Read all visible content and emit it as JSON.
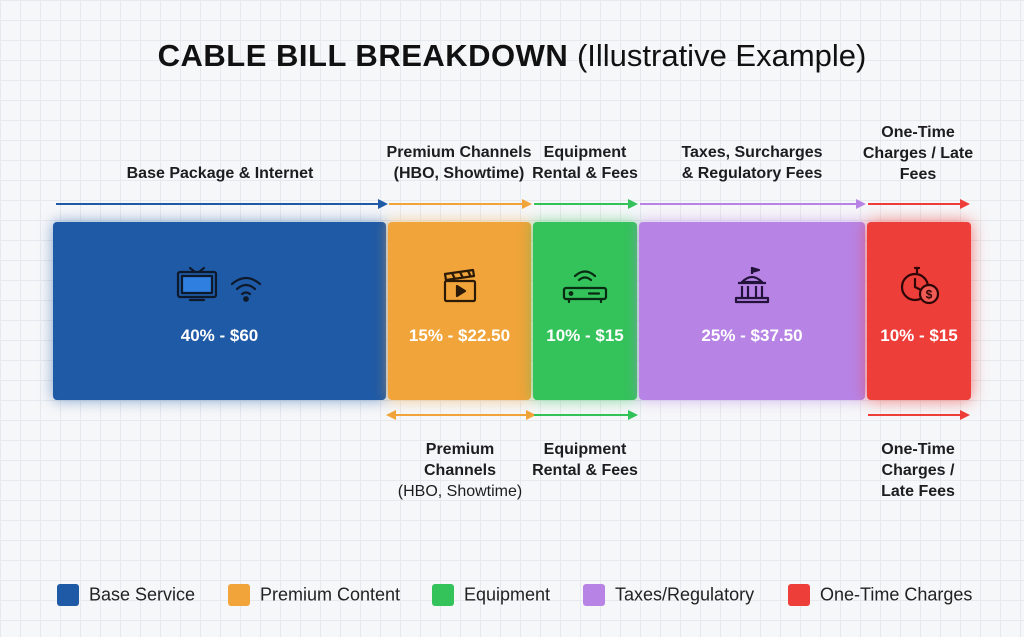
{
  "title_bold": "CABLE BILL BREAKDOWN",
  "title_rest": "(Illustrative Example)",
  "chart_data": {
    "type": "bar",
    "orientation": "horizontal-stacked",
    "categories": [
      "Base Package & Internet",
      "Premium Channels (HBO, Showtime)",
      "Equipment Rental & Fees",
      "Taxes, Surcharges & Regulatory Fees",
      "One-Time Charges / Late Fees"
    ],
    "series": [
      {
        "name": "Base Service",
        "percent": 40,
        "amount": 60,
        "label": "40% - $60",
        "color": "#1f5aa6",
        "icon": "tv-wifi-icon"
      },
      {
        "name": "Premium Content",
        "percent": 15,
        "amount": 22.5,
        "label": "15% - $22.50",
        "color": "#f0a43a",
        "icon": "clapperboard-icon"
      },
      {
        "name": "Equipment",
        "percent": 10,
        "amount": 15,
        "label": "10% - $15",
        "color": "#34c25b",
        "icon": "router-icon"
      },
      {
        "name": "Taxes/Regulatory",
        "percent": 25,
        "amount": 37.5,
        "label": "25% - $37.50",
        "color": "#b784e6",
        "icon": "government-building-icon"
      },
      {
        "name": "One-Time Charges",
        "percent": 10,
        "amount": 15,
        "label": "10% - $15",
        "color": "#ee3e3a",
        "icon": "stopwatch-dollar-icon"
      }
    ],
    "legend_placement": "bottom"
  },
  "top_labels": {
    "base": {
      "line1": "Base Package & Internet"
    },
    "premium": {
      "line1": "Premium Channels",
      "line2": "(HBO, Showtime)"
    },
    "equipment": {
      "line1": "Equipment",
      "line2": "Rental & Fees"
    },
    "taxes": {
      "line1": "Taxes, Surcharges",
      "line2": "& Regulatory Fees"
    },
    "onetime": {
      "line1": "One-Time",
      "line2": "Charges / Late",
      "line3": "Fees"
    }
  },
  "bottom_labels": {
    "premium": {
      "line1": "Premium",
      "line2": "Channels",
      "line3": "(HBO, Showtime)"
    },
    "equipment": {
      "line1": "Equipment",
      "line2": "Rental & Fees"
    },
    "onetime": {
      "line1": "One-Time",
      "line2": "Charges /",
      "line3": "Late Fees"
    }
  },
  "colors": {
    "base": "#1f5aa6",
    "premium": "#f0a43a",
    "equipment": "#34c25b",
    "taxes": "#b784e6",
    "onetime": "#ee3e3a"
  }
}
